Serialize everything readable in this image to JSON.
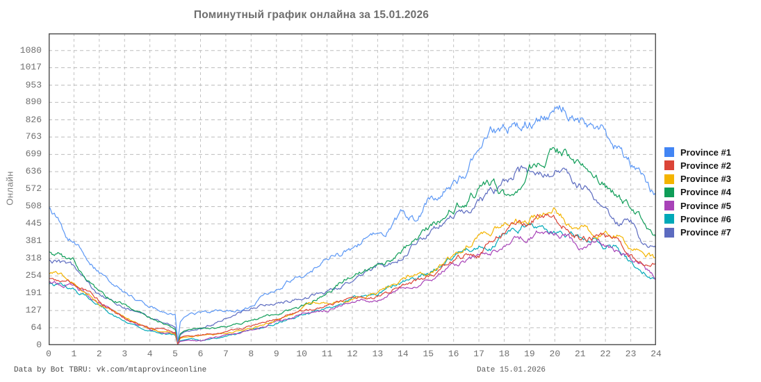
{
  "chart_data": {
    "type": "line",
    "title": "Поминутный график онлайна за 15.01.2026",
    "ylabel": "Онлайн",
    "xlabel": "Date 15.01.2026",
    "x_unit": "hour of day",
    "xlim": [
      0,
      24
    ],
    "ylim": [
      0,
      1143
    ],
    "grid": "dashed",
    "legend_position": "right",
    "x_ticks": [
      0,
      1,
      2,
      3,
      4,
      5,
      6,
      7,
      8,
      9,
      10,
      11,
      12,
      13,
      14,
      15,
      16,
      17,
      18,
      19,
      20,
      21,
      22,
      23,
      24
    ],
    "y_ticks": [
      0,
      64,
      127,
      191,
      254,
      318,
      381,
      445,
      508,
      572,
      636,
      699,
      763,
      826,
      890,
      953,
      1017,
      1080
    ],
    "note_restart_dip_hour": 5.1,
    "x": [
      0,
      0.5,
      1,
      1.5,
      2,
      2.5,
      3,
      3.5,
      4,
      4.5,
      5,
      5.1,
      5.2,
      5.35,
      5.5,
      6,
      6.5,
      7,
      7.5,
      8,
      8.5,
      9,
      9.5,
      10,
      10.5,
      11,
      11.5,
      12,
      12.5,
      13,
      13.5,
      14,
      14.5,
      15,
      15.5,
      16,
      16.5,
      17,
      17.5,
      18,
      18.5,
      19,
      19.5,
      20,
      20.5,
      21,
      21.5,
      22,
      22.5,
      23,
      23.5,
      24
    ],
    "series": [
      {
        "name": "Province #1",
        "color": "#4285f4",
        "line_color": "#5b97f5",
        "values": [
          500,
          430,
          375,
          320,
          265,
          225,
          195,
          165,
          140,
          125,
          113,
          12,
          85,
          102,
          110,
          118,
          124,
          127,
          128,
          142,
          183,
          210,
          232,
          255,
          285,
          315,
          335,
          355,
          390,
          408,
          430,
          480,
          462,
          532,
          558,
          592,
          645,
          723,
          772,
          812,
          808,
          825,
          838,
          852,
          862,
          822,
          815,
          795,
          726,
          662,
          596,
          548
        ]
      },
      {
        "name": "Province #2",
        "color": "#db4437",
        "line_color": "#db4437",
        "values": [
          247,
          238,
          228,
          196,
          160,
          128,
          100,
          80,
          65,
          56,
          50,
          5,
          28,
          33,
          35,
          36,
          42,
          48,
          58,
          69,
          84,
          99,
          112,
          125,
          135,
          145,
          158,
          170,
          175,
          178,
          200,
          222,
          237,
          252,
          278,
          306,
          331,
          323,
          370,
          425,
          440,
          456,
          475,
          463,
          430,
          405,
          398,
          392,
          387,
          340,
          298,
          293
        ]
      },
      {
        "name": "Province #3",
        "color": "#f4b400",
        "line_color": "#f4b400",
        "values": [
          265,
          250,
          232,
          195,
          155,
          125,
          98,
          80,
          62,
          52,
          45,
          5,
          25,
          29,
          30,
          35,
          38,
          43,
          50,
          61,
          75,
          94,
          110,
          127,
          158,
          150,
          160,
          170,
          185,
          194,
          220,
          247,
          255,
          265,
          295,
          323,
          362,
          392,
          420,
          446,
          455,
          471,
          480,
          500,
          455,
          420,
          415,
          413,
          400,
          344,
          341,
          310
        ]
      },
      {
        "name": "Province #4",
        "color": "#0f9d58",
        "line_color": "#0f9d58",
        "values": [
          345,
          325,
          305,
          240,
          185,
          168,
          153,
          125,
          102,
          80,
          64,
          8,
          42,
          52,
          56,
          60,
          64,
          69,
          78,
          87,
          100,
          112,
          125,
          140,
          165,
          196,
          230,
          260,
          275,
          290,
          306,
          349,
          382,
          420,
          469,
          507,
          535,
          565,
          596,
          560,
          585,
          640,
          680,
          710,
          690,
          655,
          637,
          591,
          560,
          497,
          469,
          390
        ]
      },
      {
        "name": "Province #5",
        "color": "#a843b8",
        "line_color": "#a843b8",
        "values": [
          230,
          222,
          214,
          185,
          150,
          120,
          95,
          75,
          58,
          48,
          42,
          4,
          14,
          16,
          18,
          15,
          25,
          36,
          45,
          56,
          68,
          87,
          100,
          112,
          120,
          127,
          145,
          163,
          165,
          163,
          185,
          204,
          220,
          239,
          265,
          290,
          316,
          318,
          336,
          367,
          382,
          400,
          418,
          408,
          392,
          360,
          387,
          374,
          344,
          323,
          293,
          240
        ]
      },
      {
        "name": "Province #6",
        "color": "#00a9b8",
        "line_color": "#00a9b8",
        "values": [
          222,
          215,
          209,
          180,
          145,
          115,
          90,
          70,
          52,
          42,
          38,
          4,
          16,
          19,
          22,
          20,
          25,
          31,
          40,
          51,
          62,
          82,
          98,
          115,
          122,
          130,
          155,
          175,
          182,
          190,
          215,
          239,
          250,
          260,
          295,
          328,
          367,
          369,
          354,
          418,
          438,
          430,
          425,
          413,
          400,
          392,
          395,
          362,
          354,
          306,
          272,
          240
        ]
      },
      {
        "name": "Province #7",
        "color": "#5c6bc0",
        "line_color": "#5c6bc0",
        "values": [
          315,
          300,
          285,
          230,
          188,
          160,
          137,
          118,
          100,
          85,
          70,
          6,
          38,
          48,
          52,
          60,
          78,
          100,
          122,
          138,
          150,
          158,
          163,
          171,
          182,
          196,
          215,
          234,
          262,
          293,
          298,
          331,
          369,
          400,
          443,
          476,
          497,
          520,
          560,
          590,
          645,
          635,
          625,
          640,
          630,
          590,
          545,
          505,
          455,
          448,
          370,
          348
        ]
      }
    ]
  },
  "footer": {
    "credit": "Data by Bot TBRU: vk.com/mtaprovinceonline",
    "date": "Date 15.01.2026"
  }
}
